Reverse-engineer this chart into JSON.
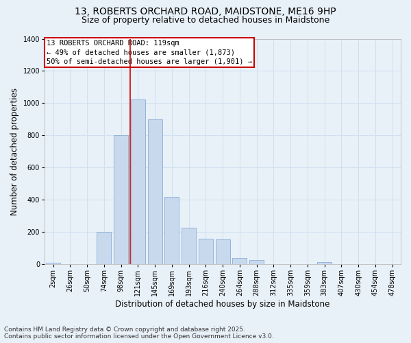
{
  "title_line1": "13, ROBERTS ORCHARD ROAD, MAIDSTONE, ME16 9HP",
  "title_line2": "Size of property relative to detached houses in Maidstone",
  "xlabel": "Distribution of detached houses by size in Maidstone",
  "ylabel": "Number of detached properties",
  "categories": [
    "2sqm",
    "26sqm",
    "50sqm",
    "74sqm",
    "98sqm",
    "121sqm",
    "145sqm",
    "169sqm",
    "193sqm",
    "216sqm",
    "240sqm",
    "264sqm",
    "288sqm",
    "312sqm",
    "335sqm",
    "359sqm",
    "383sqm",
    "407sqm",
    "430sqm",
    "454sqm",
    "478sqm"
  ],
  "values": [
    10,
    0,
    0,
    200,
    800,
    1025,
    900,
    420,
    225,
    160,
    155,
    40,
    25,
    0,
    0,
    0,
    15,
    0,
    0,
    0,
    0
  ],
  "bar_color": "#c8d9ee",
  "bar_edge_color": "#8aadd4",
  "annotation_text_line1": "13 ROBERTS ORCHARD ROAD: 119sqm",
  "annotation_text_line2": "← 49% of detached houses are smaller (1,873)",
  "annotation_text_line3": "50% of semi-detached houses are larger (1,901) →",
  "annotation_box_facecolor": "#ffffff",
  "annotation_box_edgecolor": "#cc0000",
  "vline_color": "#cc0000",
  "vline_x": 4.55,
  "grid_color": "#d0e0ef",
  "background_color": "#e8f0f8",
  "plot_bg_color": "#e8f0f8",
  "footer_line1": "Contains HM Land Registry data © Crown copyright and database right 2025.",
  "footer_line2": "Contains public sector information licensed under the Open Government Licence v3.0.",
  "ylim": [
    0,
    1400
  ],
  "yticks": [
    0,
    200,
    400,
    600,
    800,
    1000,
    1200,
    1400
  ],
  "title_fontsize": 10,
  "subtitle_fontsize": 9,
  "tick_fontsize": 7,
  "label_fontsize": 8.5,
  "annotation_fontsize": 7.5,
  "footer_fontsize": 6.5
}
